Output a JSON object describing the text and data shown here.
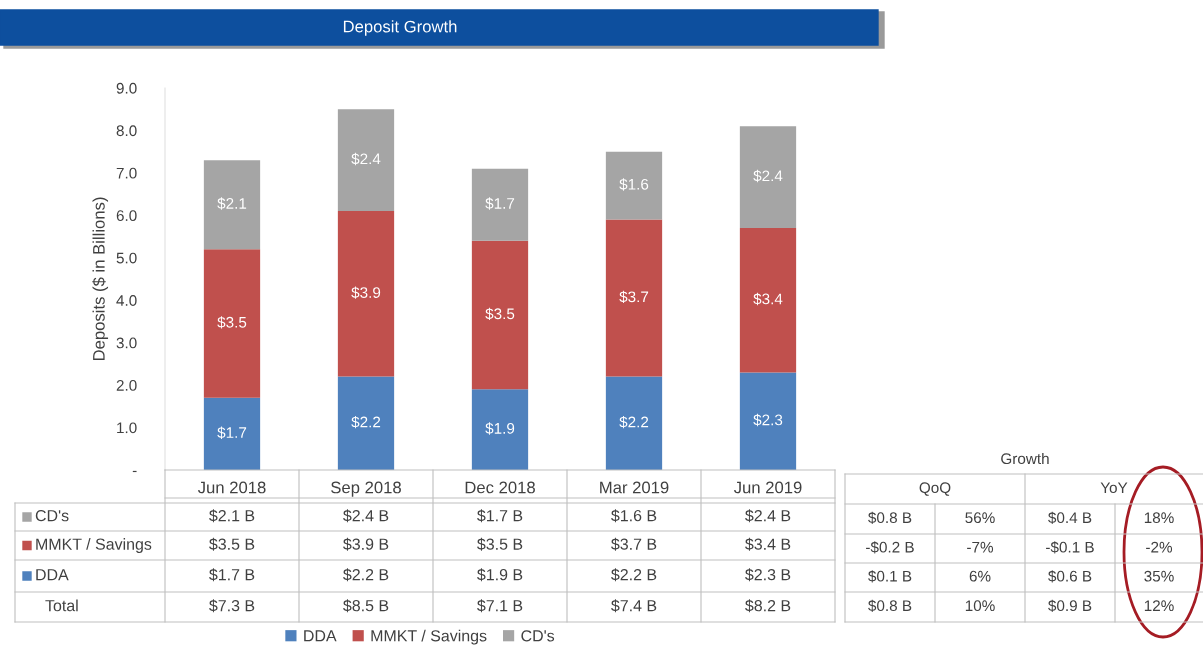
{
  "chart_data": {
    "type": "bar",
    "title": "Deposit Growth",
    "ylabel": "Deposits ($ in Billions)",
    "stacked": true,
    "categories": [
      "Jun 2018",
      "Sep 2018",
      "Dec 2018",
      "Mar 2019",
      "Jun 2019"
    ],
    "series": [
      {
        "name": "DDA",
        "color": "#4f81bd",
        "values": [
          1.7,
          2.2,
          1.9,
          2.2,
          2.3
        ],
        "value_labels": [
          "$1.7",
          "$2.2",
          "$1.9",
          "$2.2",
          "$2.3"
        ]
      },
      {
        "name": "MMKT / Savings",
        "color": "#c0504d",
        "values": [
          3.5,
          3.9,
          3.5,
          3.7,
          3.4
        ],
        "value_labels": [
          "$3.5",
          "$3.9",
          "$3.5",
          "$3.7",
          "$3.4"
        ]
      },
      {
        "name": "CD's",
        "color": "#a5a5a5",
        "values": [
          2.1,
          2.4,
          1.7,
          1.6,
          2.4
        ],
        "value_labels": [
          "$2.1",
          "$2.4",
          "$1.7",
          "$1.6",
          "$2.4"
        ]
      }
    ],
    "annotations": [
      "Total",
      "$2.1 B",
      "$2.4 B",
      "$1.7 B",
      "$1.6 B",
      "$2.4 B",
      "$3.5 B",
      "$3.9 B",
      "$3.5 B",
      "$3.7 B",
      "$3.4 B",
      "$1.7 B",
      "$2.2 B",
      "$1.9 B",
      "$2.2 B",
      "$2.3 B",
      "$7.3 B",
      "$8.5 B",
      "$7.1 B",
      "$7.4 B",
      "$8.2 B",
      "Growth",
      "QoQ",
      "YoY",
      "$0.8 B",
      "56%",
      "$0.4 B",
      "18%",
      "-$0.2 B",
      "-7%",
      "-$0.1 B",
      "-2%",
      "$0.1 B",
      "6%",
      "$0.6 B",
      "35%",
      "$0.8 B",
      "10%",
      "$0.9 B",
      "12%"
    ],
    "ylim": [
      0,
      9
    ],
    "yticks": [
      {
        "value": 0,
        "label": "-"
      },
      {
        "value": 1,
        "label": "1.0"
      },
      {
        "value": 2,
        "label": "2.0"
      },
      {
        "value": 3,
        "label": "3.0"
      },
      {
        "value": 4,
        "label": "4.0"
      },
      {
        "value": 5,
        "label": "5.0"
      },
      {
        "value": 6,
        "label": "6.0"
      },
      {
        "value": 7,
        "label": "7.0"
      },
      {
        "value": 8,
        "label": "8.0"
      },
      {
        "value": 9,
        "label": "9.0"
      }
    ],
    "grid": false,
    "legend": "bottom"
  }
}
